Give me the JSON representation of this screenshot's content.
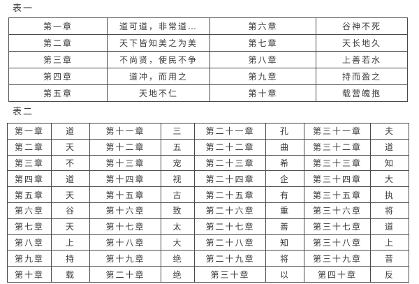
{
  "page": {
    "background_color": "#ffffff",
    "text_color": "#3a3a3a",
    "border_color": "#4a4a4a"
  },
  "table_one": {
    "title": "表一",
    "rows": [
      [
        "第一章",
        "道可道，非常道…",
        "第六章",
        "谷神不死"
      ],
      [
        "第二章",
        "天下皆知美之为美",
        "第七章",
        "天长地久"
      ],
      [
        "第三章",
        "不尚贤，使民不争",
        "第八章",
        "上善若水"
      ],
      [
        "第四章",
        "道冲，而用之",
        "第九章",
        "持而盈之"
      ],
      [
        "第五章",
        "天地不仁",
        "第十章",
        "载营魄抱"
      ]
    ]
  },
  "table_two": {
    "title": "表二",
    "rows": [
      [
        "第一章",
        "道",
        "第十一章",
        "三",
        "第二十一章",
        "孔",
        "第三十一章",
        "夫"
      ],
      [
        "第二章",
        "天",
        "第十二章",
        "五",
        "第二十二章",
        "曲",
        "第三十二章",
        "道"
      ],
      [
        "第三章",
        "不",
        "第十三章",
        "宠",
        "第二十三章",
        "希",
        "第三十三章",
        "知"
      ],
      [
        "第四章",
        "道",
        "第十四章",
        "视",
        "第二十四章",
        "企",
        "第三十四章",
        "大"
      ],
      [
        "第五章",
        "天",
        "第十五章",
        "古",
        "第二十五章",
        "有",
        "第三十五章",
        "执"
      ],
      [
        "第六章",
        "谷",
        "第十六章",
        "致",
        "第二十六章",
        "重",
        "第三十六章",
        "将"
      ],
      [
        "第七章",
        "天",
        "第十七章",
        "太",
        "第二十七章",
        "善",
        "第三十七章",
        "道"
      ],
      [
        "第八章",
        "上",
        "第十八章",
        "大",
        "第二十八章",
        "知",
        "第三十八章",
        "上"
      ],
      [
        "第九章",
        "持",
        "第十九章",
        "绝",
        "第二十九章",
        "将",
        "第三十九章",
        "昔"
      ],
      [
        "第十章",
        "载",
        "第二十章",
        "绝",
        "第三十章",
        "以",
        "第四十章",
        "反"
      ]
    ]
  }
}
